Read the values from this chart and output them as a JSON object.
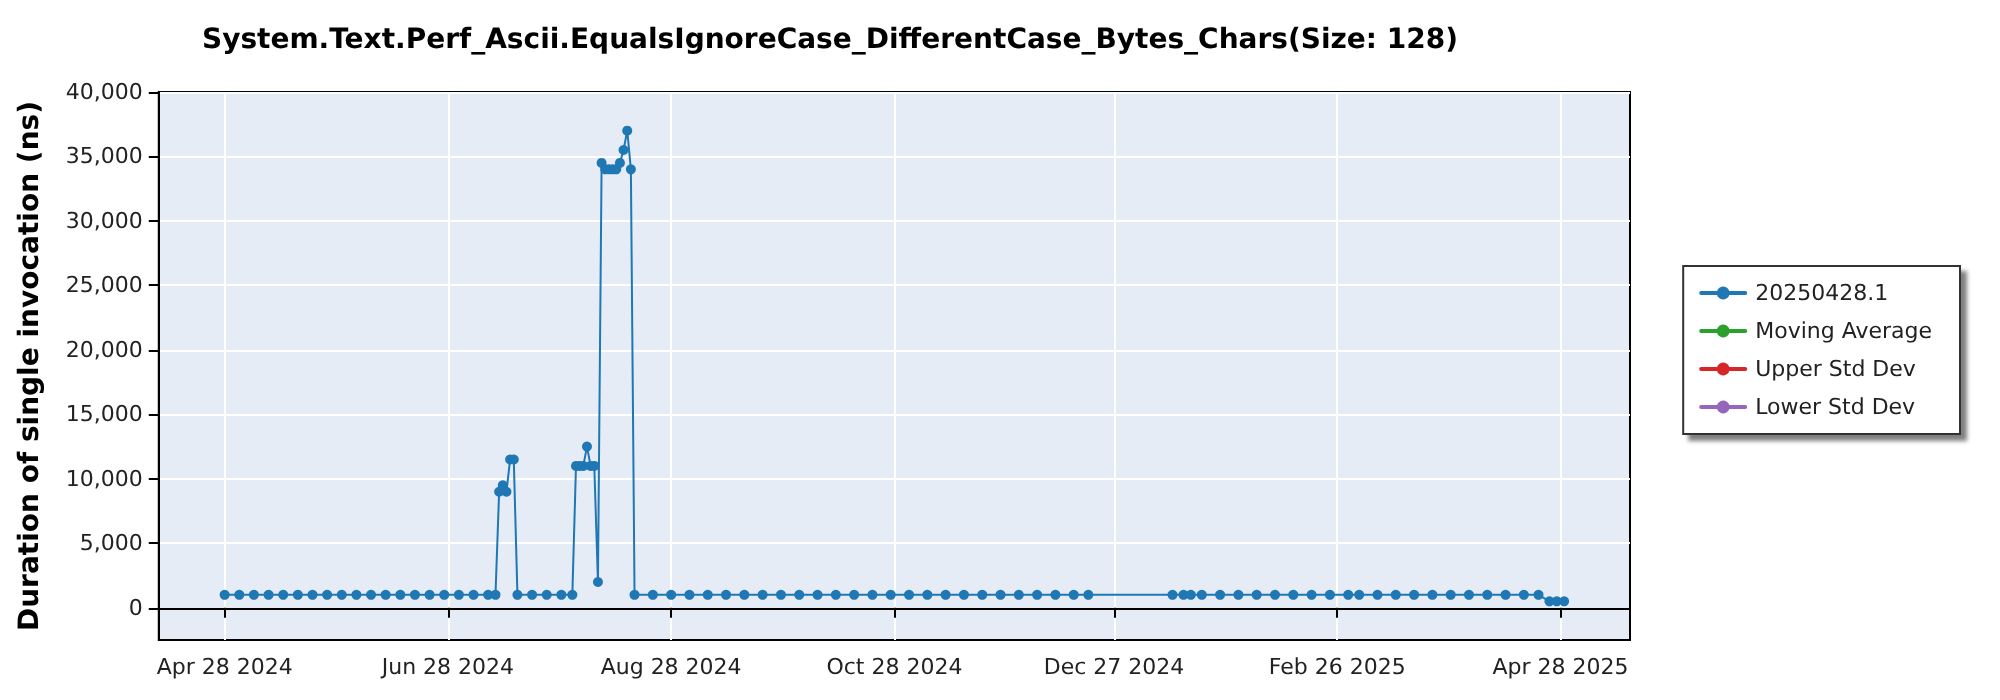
{
  "chart_data": {
    "type": "line",
    "title": "System.Text.Perf_Ascii.EqualsIgnoreCase_DifferentCase_Bytes_Chars(Size: 128)",
    "ylabel": "Duration of single invocation (ns)",
    "xlim": [
      "2024-04-10",
      "2025-05-17"
    ],
    "xticks": [
      {
        "value": "2024-04-28",
        "label": "Apr 28 2024"
      },
      {
        "value": "2024-06-28",
        "label": "Jun 28 2024"
      },
      {
        "value": "2024-08-28",
        "label": "Aug 28 2024"
      },
      {
        "value": "2024-10-28",
        "label": "Oct 28 2024"
      },
      {
        "value": "2024-12-27",
        "label": "Dec 27 2024"
      },
      {
        "value": "2025-02-26",
        "label": "Feb 26 2025"
      },
      {
        "value": "2025-04-28",
        "label": "Apr 28 2025"
      }
    ],
    "ylim": [
      -2500,
      40000
    ],
    "yticks": [
      0,
      {
        "value": 5000,
        "label": "5,000"
      },
      {
        "value": 10000,
        "label": "10,000"
      },
      {
        "value": 15000,
        "label": "15,000"
      },
      {
        "value": 20000,
        "label": "20,000"
      },
      {
        "value": 25000,
        "label": "25,000"
      },
      {
        "value": 30000,
        "label": "30,000"
      },
      {
        "value": 35000,
        "label": "35,000"
      },
      {
        "value": 40000,
        "label": "40,000"
      }
    ],
    "grid": true,
    "legend": "right",
    "marker": "circle",
    "line_style": "solid",
    "series": [
      {
        "name": "20250428.1",
        "color": "#1f77b4",
        "x": [
          "2024-04-28",
          "2024-05-02",
          "2024-05-06",
          "2024-05-10",
          "2024-05-14",
          "2024-05-18",
          "2024-05-22",
          "2024-05-26",
          "2024-05-30",
          "2024-06-03",
          "2024-06-07",
          "2024-06-11",
          "2024-06-15",
          "2024-06-19",
          "2024-06-23",
          "2024-06-27",
          "2024-07-01",
          "2024-07-05",
          "2024-07-09",
          "2024-07-11",
          "2024-07-12",
          "2024-07-13",
          "2024-07-14",
          "2024-07-15",
          "2024-07-16",
          "2024-07-17",
          "2024-07-21",
          "2024-07-25",
          "2024-07-29",
          "2024-08-01",
          "2024-08-02",
          "2024-08-03",
          "2024-08-04",
          "2024-08-05",
          "2024-08-06",
          "2024-08-07",
          "2024-08-08",
          "2024-08-09",
          "2024-08-10",
          "2024-08-11",
          "2024-08-12",
          "2024-08-13",
          "2024-08-14",
          "2024-08-15",
          "2024-08-16",
          "2024-08-17",
          "2024-08-18",
          "2024-08-23",
          "2024-08-28",
          "2024-09-02",
          "2024-09-07",
          "2024-09-12",
          "2024-09-17",
          "2024-09-22",
          "2024-09-27",
          "2024-10-02",
          "2024-10-07",
          "2024-10-12",
          "2024-10-17",
          "2024-10-22",
          "2024-10-27",
          "2024-11-01",
          "2024-11-06",
          "2024-11-11",
          "2024-11-16",
          "2024-11-21",
          "2024-11-26",
          "2024-12-01",
          "2024-12-06",
          "2024-12-11",
          "2024-12-16",
          "2024-12-20",
          "2025-01-12",
          "2025-01-15",
          "2025-01-17",
          "2025-01-20",
          "2025-01-25",
          "2025-01-30",
          "2025-02-04",
          "2025-02-09",
          "2025-02-14",
          "2025-02-19",
          "2025-02-24",
          "2025-03-01",
          "2025-03-04",
          "2025-03-09",
          "2025-03-14",
          "2025-03-19",
          "2025-03-24",
          "2025-03-29",
          "2025-04-03",
          "2025-04-08",
          "2025-04-13",
          "2025-04-18",
          "2025-04-22",
          "2025-04-25",
          "2025-04-27",
          "2025-04-29"
        ],
        "values": [
          1000,
          1000,
          1000,
          1000,
          1000,
          1000,
          1000,
          1000,
          1000,
          1000,
          1000,
          1000,
          1000,
          1000,
          1000,
          1000,
          1000,
          1000,
          1000,
          1000,
          9000,
          9500,
          9000,
          11500,
          11500,
          1000,
          1000,
          1000,
          1000,
          1000,
          11000,
          11000,
          11000,
          12500,
          11000,
          11000,
          2000,
          34500,
          34000,
          34000,
          34000,
          34000,
          34500,
          35500,
          37000,
          34000,
          1000,
          1000,
          1000,
          1000,
          1000,
          1000,
          1000,
          1000,
          1000,
          1000,
          1000,
          1000,
          1000,
          1000,
          1000,
          1000,
          1000,
          1000,
          1000,
          1000,
          1000,
          1000,
          1000,
          1000,
          1000,
          1000,
          1000,
          1000,
          1000,
          1000,
          1000,
          1000,
          1000,
          1000,
          1000,
          1000,
          1000,
          1000,
          1000,
          1000,
          1000,
          1000,
          1000,
          1000,
          1000,
          1000,
          1000,
          1000,
          1000,
          500,
          500,
          500
        ]
      },
      {
        "name": "Moving Average",
        "color": "#2ca02c"
      },
      {
        "name": "Upper Std Dev",
        "color": "#d62728"
      },
      {
        "name": "Lower Std Dev",
        "color": "#9467bd"
      }
    ]
  }
}
